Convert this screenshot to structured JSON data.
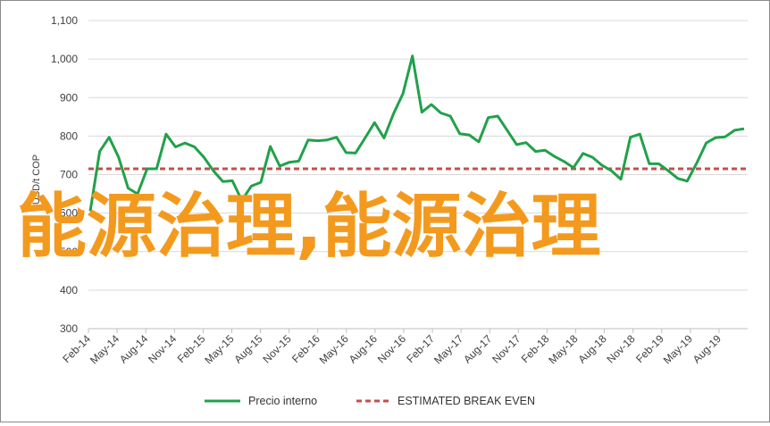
{
  "chart_data": {
    "type": "line",
    "ylabel": "USD/t COP",
    "ylim": [
      300,
      1100
    ],
    "yticks": [
      300,
      400,
      500,
      600,
      700,
      800,
      900,
      1000,
      1100
    ],
    "ytick_labels": [
      "300",
      "400",
      "500",
      "600",
      "700",
      "800",
      "900",
      "1,000",
      "1,100"
    ],
    "xtick_labels": [
      "Feb-14",
      "May-14",
      "Aug-14",
      "Nov-14",
      "Feb-15",
      "May-15",
      "Aug-15",
      "Nov-15",
      "Feb-16",
      "May-16",
      "Aug-16",
      "Nov-16",
      "Feb-17",
      "May-17",
      "Aug-17",
      "Nov-17",
      "Feb-18",
      "May-18",
      "Aug-18",
      "Nov-18",
      "Feb-19",
      "May-19",
      "Aug-19"
    ],
    "grid": true,
    "legend_position": "bottom",
    "series": [
      {
        "name": "Precio interno",
        "color": "#21a14a",
        "style": "solid",
        "values": [
          605,
          760,
          797,
          745,
          665,
          650,
          715,
          715,
          805,
          772,
          782,
          772,
          745,
          710,
          682,
          684,
          633,
          670,
          680,
          773,
          722,
          732,
          735,
          790,
          788,
          790,
          797,
          757,
          756,
          795,
          835,
          795,
          858,
          910,
          1008,
          862,
          882,
          860,
          852,
          806,
          803,
          785,
          848,
          852,
          815,
          778,
          783,
          760,
          763,
          747,
          734,
          718,
          755,
          745,
          724,
          710,
          688,
          797,
          805,
          728,
          728,
          710,
          690,
          683,
          730,
          782,
          796,
          798,
          815,
          819
        ]
      },
      {
        "name": "ESTIMATED BREAK EVEN",
        "color": "#c0504d",
        "style": "dashed",
        "constant": 715
      }
    ]
  },
  "overlay_text": "能源治理,能源治理"
}
